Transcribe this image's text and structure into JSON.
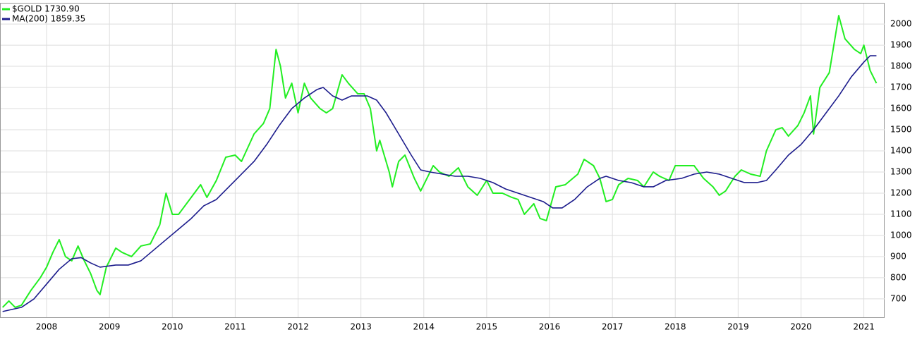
{
  "chart_data": {
    "type": "line",
    "xlim": [
      2007.27,
      2021.33
    ],
    "xticks": [
      2008,
      2009,
      2010,
      2011,
      2012,
      2013,
      2014,
      2015,
      2016,
      2017,
      2018,
      2019,
      2020,
      2021
    ],
    "ylim": [
      613,
      2097
    ],
    "yticks": [
      700,
      800,
      900,
      1000,
      1100,
      1200,
      1300,
      1400,
      1500,
      1600,
      1700,
      1800,
      1900,
      2000
    ],
    "grid": true,
    "legend": "top-left",
    "series": [
      {
        "name": "$GOLD 1730.90",
        "color": "#22ee22",
        "x": [
          2007.3,
          2007.4,
          2007.5,
          2007.6,
          2007.75,
          2007.9,
          2008.0,
          2008.1,
          2008.2,
          2008.3,
          2008.4,
          2008.5,
          2008.6,
          2008.7,
          2008.8,
          2008.85,
          2008.95,
          2009.1,
          2009.2,
          2009.35,
          2009.5,
          2009.65,
          2009.8,
          2009.9,
          2010.0,
          2010.1,
          2010.3,
          2010.45,
          2010.55,
          2010.7,
          2010.85,
          2011.0,
          2011.1,
          2011.3,
          2011.45,
          2011.55,
          2011.65,
          2011.72,
          2011.8,
          2011.9,
          2012.0,
          2012.1,
          2012.2,
          2012.35,
          2012.45,
          2012.55,
          2012.7,
          2012.8,
          2012.95,
          2013.05,
          2013.15,
          2013.25,
          2013.3,
          2013.45,
          2013.5,
          2013.6,
          2013.7,
          2013.85,
          2013.95,
          2014.05,
          2014.15,
          2014.25,
          2014.4,
          2014.55,
          2014.7,
          2014.85,
          2015.0,
          2015.1,
          2015.25,
          2015.4,
          2015.5,
          2015.6,
          2015.75,
          2015.85,
          2015.95,
          2016.1,
          2016.25,
          2016.45,
          2016.55,
          2016.7,
          2016.8,
          2016.9,
          2017.0,
          2017.1,
          2017.25,
          2017.4,
          2017.5,
          2017.65,
          2017.75,
          2017.9,
          2018.0,
          2018.15,
          2018.3,
          2018.45,
          2018.6,
          2018.7,
          2018.8,
          2018.95,
          2019.05,
          2019.2,
          2019.35,
          2019.45,
          2019.6,
          2019.7,
          2019.8,
          2019.95,
          2020.05,
          2020.15,
          2020.2,
          2020.3,
          2020.45,
          2020.55,
          2020.6,
          2020.7,
          2020.85,
          2020.95,
          2021.0,
          2021.1,
          2021.2
        ],
        "values": [
          660,
          690,
          660,
          670,
          740,
          800,
          850,
          920,
          980,
          900,
          880,
          950,
          880,
          820,
          740,
          720,
          850,
          940,
          920,
          900,
          950,
          960,
          1050,
          1200,
          1100,
          1100,
          1180,
          1240,
          1180,
          1260,
          1370,
          1380,
          1350,
          1480,
          1530,
          1600,
          1880,
          1800,
          1650,
          1720,
          1580,
          1720,
          1650,
          1600,
          1580,
          1600,
          1760,
          1720,
          1670,
          1670,
          1600,
          1400,
          1450,
          1300,
          1230,
          1350,
          1380,
          1270,
          1210,
          1270,
          1330,
          1300,
          1280,
          1320,
          1230,
          1190,
          1260,
          1200,
          1200,
          1180,
          1170,
          1100,
          1150,
          1080,
          1070,
          1230,
          1240,
          1290,
          1360,
          1330,
          1270,
          1160,
          1170,
          1240,
          1270,
          1260,
          1230,
          1300,
          1280,
          1260,
          1330,
          1330,
          1330,
          1270,
          1230,
          1190,
          1210,
          1280,
          1310,
          1290,
          1280,
          1400,
          1500,
          1510,
          1470,
          1520,
          1580,
          1660,
          1480,
          1700,
          1770,
          1950,
          2040,
          1930,
          1880,
          1860,
          1900,
          1780,
          1720
        ]
      },
      {
        "name": "MA(200) 1859.35",
        "color": "#1c1c8c",
        "x": [
          2007.3,
          2007.6,
          2007.8,
          2008.0,
          2008.2,
          2008.4,
          2008.55,
          2008.7,
          2008.85,
          2009.1,
          2009.3,
          2009.5,
          2009.7,
          2009.9,
          2010.1,
          2010.3,
          2010.5,
          2010.7,
          2010.9,
          2011.1,
          2011.3,
          2011.5,
          2011.7,
          2011.9,
          2012.1,
          2012.3,
          2012.4,
          2012.55,
          2012.7,
          2012.85,
          2013.1,
          2013.25,
          2013.4,
          2013.6,
          2013.8,
          2013.95,
          2014.1,
          2014.3,
          2014.5,
          2014.7,
          2014.9,
          2015.1,
          2015.3,
          2015.5,
          2015.7,
          2015.9,
          2016.05,
          2016.2,
          2016.4,
          2016.6,
          2016.8,
          2016.9,
          2017.1,
          2017.3,
          2017.5,
          2017.65,
          2017.85,
          2018.1,
          2018.3,
          2018.5,
          2018.7,
          2018.9,
          2019.1,
          2019.3,
          2019.45,
          2019.6,
          2019.8,
          2020.0,
          2020.2,
          2020.4,
          2020.6,
          2020.8,
          2021.0,
          2021.1,
          2021.2
        ],
        "values": [
          640,
          660,
          700,
          770,
          840,
          890,
          895,
          870,
          850,
          860,
          860,
          880,
          930,
          980,
          1030,
          1080,
          1140,
          1170,
          1230,
          1290,
          1350,
          1430,
          1520,
          1600,
          1650,
          1690,
          1700,
          1660,
          1640,
          1660,
          1660,
          1640,
          1580,
          1480,
          1380,
          1310,
          1300,
          1290,
          1280,
          1280,
          1270,
          1250,
          1220,
          1200,
          1180,
          1160,
          1130,
          1130,
          1170,
          1230,
          1270,
          1280,
          1260,
          1250,
          1230,
          1230,
          1260,
          1270,
          1290,
          1300,
          1290,
          1270,
          1250,
          1250,
          1260,
          1310,
          1380,
          1430,
          1500,
          1580,
          1660,
          1750,
          1820,
          1850,
          1850
        ]
      }
    ]
  }
}
